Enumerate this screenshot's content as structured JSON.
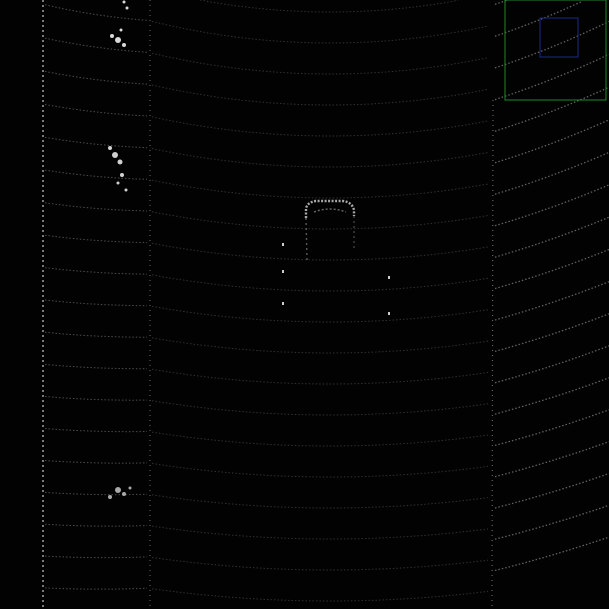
{
  "scene": {
    "background": "#020202",
    "point_color": "#8a8a8a",
    "bright_point_color": "#e6e6e6"
  },
  "inset": {
    "border_color": "#1f8a2a",
    "inner_box_color": "#1b2a8f"
  }
}
